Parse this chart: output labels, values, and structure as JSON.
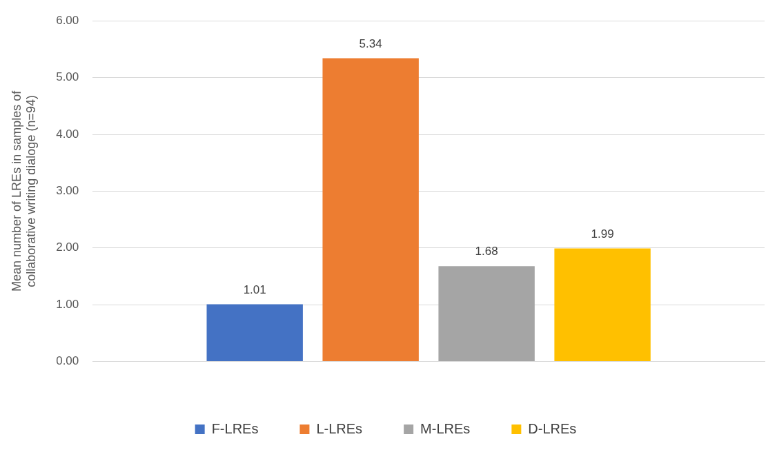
{
  "chart_data": {
    "type": "bar",
    "ylabel": "Mean number of LREs in samples of collaborative writing dialoge (n=94)",
    "categories": [
      null
    ],
    "series": [
      {
        "name": "F-LREs",
        "color": "#4472c4",
        "values": [
          1.01
        ]
      },
      {
        "name": "L-LREs",
        "color": "#ed7d31",
        "values": [
          5.34
        ]
      },
      {
        "name": "M-LREs",
        "color": "#a5a5a5",
        "values": [
          1.68
        ]
      },
      {
        "name": "D-LREs",
        "color": "#ffc000",
        "values": [
          1.99
        ]
      }
    ],
    "ylim": [
      0,
      6
    ],
    "yticks": [
      {
        "value": 0,
        "label": "0.00"
      },
      {
        "value": 1,
        "label": "1.00"
      },
      {
        "value": 2,
        "label": "2.00"
      },
      {
        "value": 3,
        "label": "3.00"
      },
      {
        "value": 4,
        "label": "4.00"
      },
      {
        "value": 5,
        "label": "5.00"
      },
      {
        "value": 6,
        "label": "6.00"
      }
    ],
    "grid": "y",
    "legend": "bottom",
    "data_labels": true
  }
}
